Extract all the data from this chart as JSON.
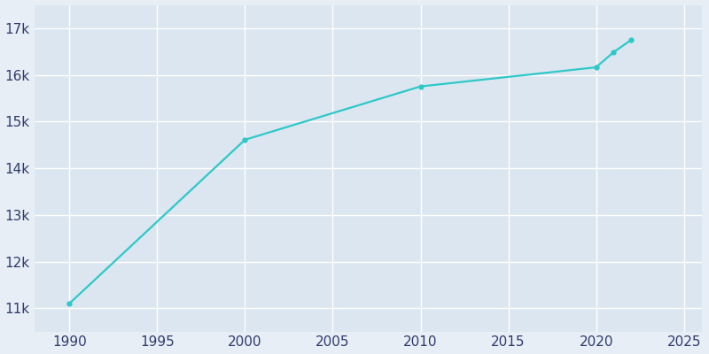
{
  "years": [
    1990,
    2000,
    2010,
    2020,
    2021,
    2022
  ],
  "population": [
    11100,
    14610,
    15753,
    16163,
    16490,
    16750
  ],
  "line_color": "#2ec8c8",
  "marker_style": "o",
  "marker_size": 3.5,
  "line_width": 1.6,
  "bg_color": "#e8eef5",
  "grid_color": "#ffffff",
  "axes_bg_color": "#dce6f0",
  "tick_label_color": "#2d3b6e",
  "xlim": [
    1988,
    2026
  ],
  "ylim": [
    10500,
    17500
  ],
  "xticks": [
    1990,
    1995,
    2000,
    2005,
    2010,
    2015,
    2020,
    2025
  ],
  "ytick_values": [
    11000,
    12000,
    13000,
    14000,
    15000,
    16000,
    17000
  ],
  "ytick_labels": [
    "11k",
    "12k",
    "13k",
    "14k",
    "15k",
    "16k",
    "17k"
  ],
  "tick_fontsize": 11
}
